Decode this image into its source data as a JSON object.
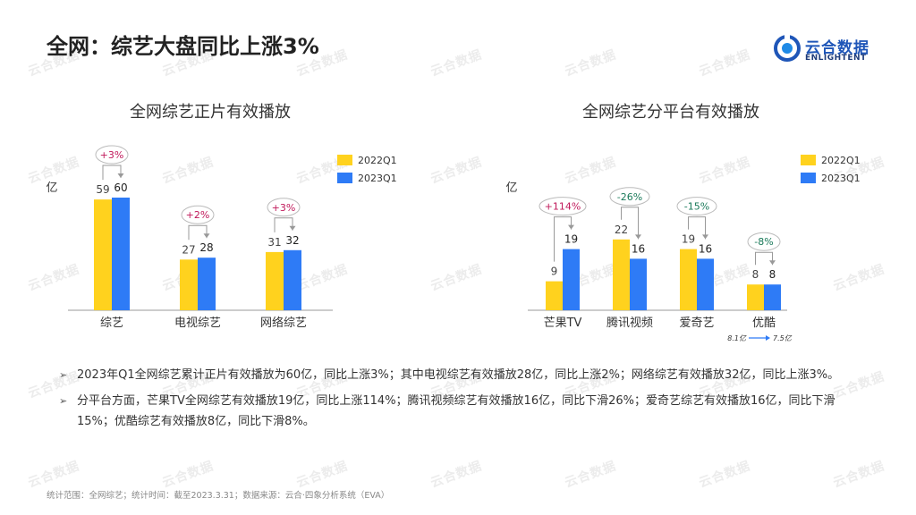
{
  "page": {
    "title": "全网：综艺大盘同比上涨3%"
  },
  "logo": {
    "name_cn": "云合数据",
    "name_en": "ENLIGHTENT"
  },
  "watermark_text": "云合数据",
  "colors": {
    "y2022": "#FFD21E",
    "y2023": "#2E7BF6",
    "up": "#c0185a",
    "down": "#1a7a5a"
  },
  "chart_data": [
    {
      "type": "bar",
      "title": "全网综艺正片有效播放",
      "ylabel": "亿",
      "categories": [
        "综艺",
        "电视综艺",
        "网络综艺"
      ],
      "series": [
        {
          "name": "2022Q1",
          "values": [
            59,
            27,
            31
          ]
        },
        {
          "name": "2023Q1",
          "values": [
            60,
            28,
            32
          ]
        }
      ],
      "changes": [
        "+3%",
        "+2%",
        "+3%"
      ],
      "legend_position": "top-right",
      "grid": false
    },
    {
      "type": "bar",
      "title": "全网综艺分平台有效播放",
      "ylabel": "亿",
      "categories": [
        "芒果TV",
        "腾讯视频",
        "爱奇艺",
        "优酷"
      ],
      "series": [
        {
          "name": "2022Q1",
          "values": [
            9,
            22,
            19,
            8
          ]
        },
        {
          "name": "2023Q1",
          "values": [
            19,
            16,
            16,
            8
          ]
        }
      ],
      "changes": [
        "+114%",
        "-26%",
        "-15%",
        "-8%"
      ],
      "annotation": {
        "from": "8.1亿",
        "to": "7.5亿"
      },
      "legend_position": "top-right",
      "grid": false
    }
  ],
  "bullets": [
    {
      "text": "2023年Q1全网综艺累计正片有效播放为60亿，同比上涨3%；其中电视综艺有效播放28亿，同比上涨2%；网络综艺有效播放32亿，同比上涨3%。"
    },
    {
      "text": "分平台方面，芒果TV全网综艺有效播放19亿，同比上涨114%；腾讯视频综艺有效播放16亿，同比下滑26%；爱奇艺综艺有效播放16亿，同比下滑15%；优酷综艺有效播放8亿，同比下滑8%。"
    }
  ],
  "footnote": "统计范围：全网综艺；统计时间：截至2023.3.31；数据来源：云合·四象分析系统（EVA）"
}
